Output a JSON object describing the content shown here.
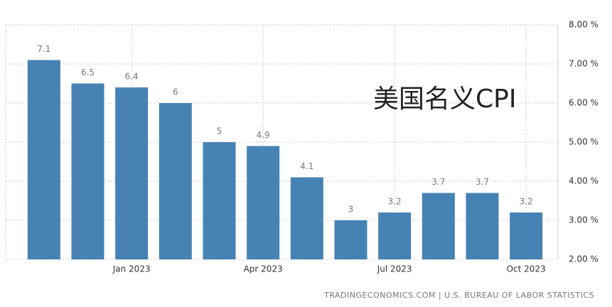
{
  "chart_data": {
    "type": "bar",
    "annotation": "美国名义CPI",
    "source": "TRADINGECONOMICS.COM | U.S. BUREAU OF LABOR STATISTICS",
    "categories": [
      null,
      null,
      "Jan 2023",
      null,
      null,
      "Apr 2023",
      null,
      null,
      "Jul 2023",
      null,
      null,
      "Oct 2023"
    ],
    "values": [
      7.1,
      6.5,
      6.4,
      6,
      5,
      4.9,
      4.1,
      3,
      3.2,
      3.7,
      3.7,
      3.2
    ],
    "color": "#4682b4",
    "ylim": [
      2,
      8
    ],
    "yticks": [
      {
        "value": 2,
        "label": "2.00 %"
      },
      {
        "value": 3,
        "label": "3.00 %"
      },
      {
        "value": 4,
        "label": "4.00 %"
      },
      {
        "value": 5,
        "label": "5.00 %"
      },
      {
        "value": 6,
        "label": "6.00 %"
      },
      {
        "value": 7,
        "label": "7.00 %"
      },
      {
        "value": 8,
        "label": "8.00 %"
      }
    ],
    "grid": true
  }
}
